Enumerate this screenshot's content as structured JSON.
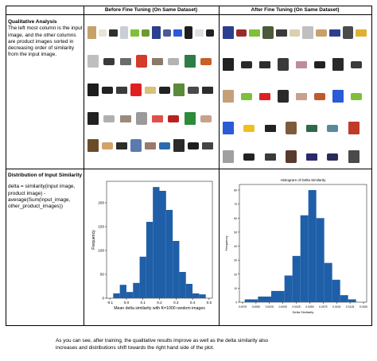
{
  "table": {
    "headers": [
      "",
      "Before Fine Tuning (On Same Dataset)",
      "After Fine Tuning (On Same Dataset)"
    ],
    "qualitative": {
      "title": "Qualitative Analysis",
      "body": "The left most column is the input image, and the other columns are product images sorted in decreasing order of similarity from the input image."
    },
    "distribution": {
      "title": "Distribution of Input Similarity",
      "formula": "delta = similarity(input image, product image) - average(Sum(input_image, other_product_images))"
    }
  },
  "thumb_colors": {
    "before": [
      [
        "#c7a06a",
        "#e9e3d8",
        "#2f2f2f",
        "#c9cdd6",
        "#7fbf3a",
        "#6d9a2f",
        "#2c3f8f",
        "#4b5b94",
        "#2a5bd7",
        "#1e1e1e",
        "#e0e0e0",
        "#222222"
      ],
      [
        "#bfbfbf",
        "#3a3a3a",
        "#6b6b6b",
        "#d33b2a",
        "#8a7a6a",
        "#b3b3b3",
        "#2e7d46",
        "#c8602a"
      ],
      [
        "#1d1d1d",
        "#222222",
        "#3b3b3b",
        "#e02020",
        "#d9c07b",
        "#222222",
        "#5a8a3a",
        "#4a4a4a",
        "#2d2d2d"
      ],
      [
        "#222222",
        "#b0b0b0",
        "#9c8a7a",
        "#9a9a9a",
        "#e0504a",
        "#bb2020",
        "#2e8b3a",
        "#c7a18a"
      ],
      [
        "#6a4b2a",
        "#d4a16a",
        "#2c2c2c",
        "#5a7ab0",
        "#9a7a6a",
        "#2a6ab0",
        "#2a2a2a",
        "#1d1d1d",
        "#444444"
      ]
    ],
    "after": [
      [
        "#2c3f8f",
        "#9a2a2a",
        "#7fbf3a",
        "#4a5a3a",
        "#3a3a3a",
        "#d9d0b0",
        "#c0c0c0",
        "#c7a06a",
        "#2c3f8f",
        "#4b4b4b",
        "#e0b030"
      ],
      [
        "#222222",
        "#2a2a2a",
        "#2d2d2d",
        "#3a3a3a",
        "#c08aa0",
        "#222222",
        "#2a2a2a",
        "#3a3a3a"
      ],
      [
        "#c4a07a",
        "#7fbf3a",
        "#e02020",
        "#2a2a2a",
        "#c7a18a",
        "#bf5a2a",
        "#2a5bd7",
        "#7fbf3a"
      ],
      [
        "#2a5bd7",
        "#f0c020",
        "#222222",
        "#7f5a3a",
        "#2e6a4a",
        "#5a8a9a",
        "#c03a2a"
      ],
      [
        "#a0a0a0",
        "#222222",
        "#3a3a3a",
        "#5a3a2a",
        "#2a2a6a",
        "#2a2a5a",
        "#4a4a4a"
      ]
    ]
  },
  "chart_data": [
    {
      "type": "bar",
      "title": "",
      "xlabel": "Mean delta similarity with K=1000 random images",
      "ylabel": "Frequency",
      "x_ticks": [
        "-0.1",
        "0.0",
        "0.1",
        "0.2",
        "0.3",
        "0.4",
        "0.5"
      ],
      "y_ticks": [
        "0",
        "50",
        "100",
        "150",
        "200"
      ],
      "xlim": [
        -0.12,
        0.52
      ],
      "ylim": [
        0,
        245
      ],
      "bin_edges": [
        -0.08,
        -0.04,
        0.0,
        0.04,
        0.08,
        0.12,
        0.16,
        0.2,
        0.24,
        0.28,
        0.32,
        0.36,
        0.4,
        0.44,
        0.48
      ],
      "values": [
        10,
        28,
        13,
        32,
        87,
        160,
        233,
        225,
        185,
        120,
        55,
        30,
        10,
        8
      ],
      "bar_color": "#1f5fa8"
    },
    {
      "type": "bar",
      "title": "Histogram of Delta Similarity",
      "xlabel": "Delta Similarity",
      "ylabel": "Frequency",
      "x_ticks": [
        "0.0075",
        "0.0050",
        "0.0025",
        "0.0000",
        "0.0025",
        "0.0050",
        "0.0075",
        "0.0100",
        "0.0125",
        "0.0150"
      ],
      "y_ticks": [
        "0",
        "10",
        "20",
        "30",
        "40",
        "50",
        "60",
        "70",
        "80"
      ],
      "xlim": [
        -0.0085,
        0.0155
      ],
      "ylim": [
        0,
        84
      ],
      "bin_edges": [
        -0.0075,
        -0.005,
        -0.0025,
        0.0,
        0.0015,
        0.003,
        0.0045,
        0.006,
        0.0075,
        0.009,
        0.0105,
        0.012,
        0.0135
      ],
      "values": [
        2,
        4,
        8,
        19,
        33,
        62,
        80,
        60,
        28,
        16,
        5,
        2
      ],
      "bar_color": "#1f5fa8"
    }
  ],
  "footer": {
    "line1": "As you can see, after training, the qualitative results improve as well as the delta similarity also",
    "line2": "increases and distributions shift towards the right hand side of the plot."
  }
}
